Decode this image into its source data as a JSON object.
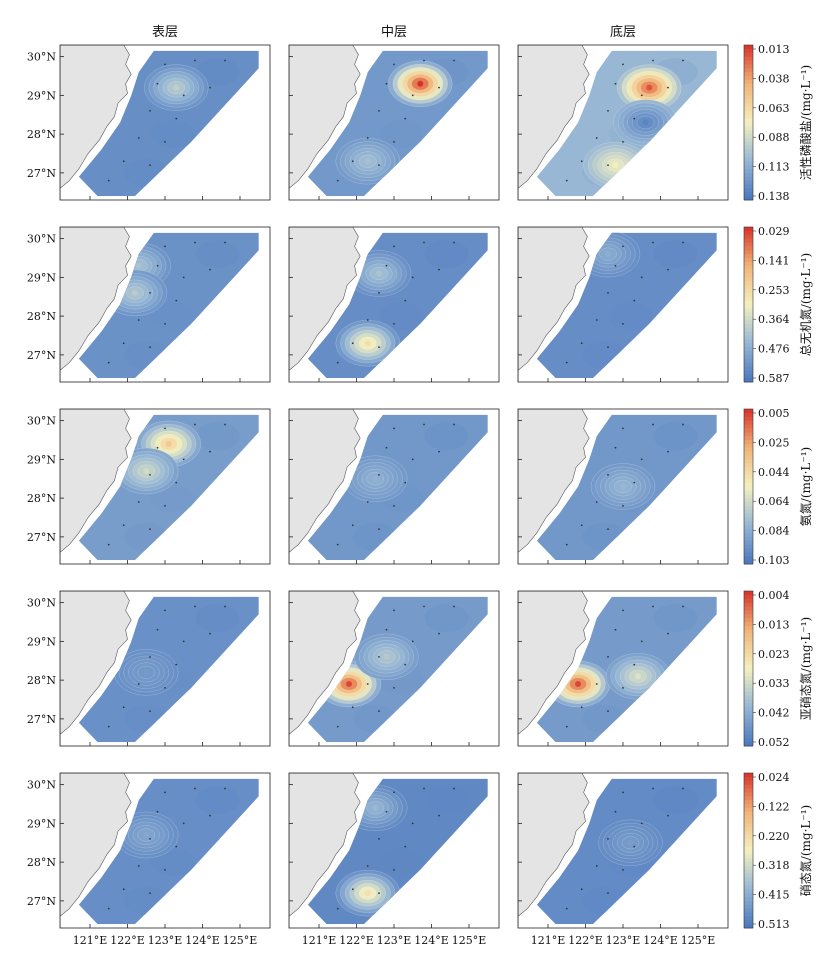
{
  "chart_data": {
    "type": "heatmap",
    "columns": [
      "表层",
      "中层",
      "底层"
    ],
    "x_ticks": [
      "121°E",
      "122°E",
      "123°E",
      "124°E",
      "125°E"
    ],
    "y_ticks": [
      "30°N",
      "29°N",
      "28°N",
      "27°N"
    ],
    "x_range": [
      120.2,
      125.8
    ],
    "y_range": [
      26.3,
      30.3
    ],
    "colors": {
      "low": "#4a76bd",
      "mid": "#f4f0c0",
      "high": "#d7312a",
      "land": "#e4e4e4"
    },
    "rows": [
      {
        "label": "活性磷酸盐/(mg·L⁻¹)",
        "colorbar_ticks": [
          "0.013",
          "0.038",
          "0.063",
          "0.088",
          "0.113",
          "0.138"
        ],
        "range": [
          0.013,
          0.138
        ],
        "panels": [
          {
            "layer": "表层",
            "base": 0.025,
            "hotspots": [
              {
                "lon": 123.3,
                "lat": 29.2,
                "value": 0.058
              }
            ]
          },
          {
            "layer": "中层",
            "base": 0.03,
            "hotspots": [
              {
                "lon": 123.7,
                "lat": 29.3,
                "value": 0.138
              },
              {
                "lon": 122.3,
                "lat": 27.3,
                "value": 0.05
              }
            ]
          },
          {
            "layer": "底层",
            "base": 0.045,
            "hotspots": [
              {
                "lon": 123.7,
                "lat": 29.2,
                "value": 0.13
              },
              {
                "lon": 122.8,
                "lat": 27.2,
                "value": 0.075
              },
              {
                "lon": 123.6,
                "lat": 28.3,
                "value": 0.02
              }
            ]
          }
        ]
      },
      {
        "label": "总无机氮/(mg·L⁻¹)",
        "colorbar_ticks": [
          "0.029",
          "0.141",
          "0.253",
          "0.364",
          "0.476",
          "0.587"
        ],
        "range": [
          0.029,
          0.587
        ],
        "panels": [
          {
            "layer": "表层",
            "base": 0.09,
            "hotspots": [
              {
                "lon": 122.3,
                "lat": 29.3,
                "value": 0.2
              },
              {
                "lon": 122.2,
                "lat": 28.6,
                "value": 0.22
              }
            ]
          },
          {
            "layer": "中层",
            "base": 0.08,
            "hotspots": [
              {
                "lon": 122.3,
                "lat": 27.3,
                "value": 0.35
              },
              {
                "lon": 122.6,
                "lat": 29.1,
                "value": 0.2
              }
            ]
          },
          {
            "layer": "底层",
            "base": 0.08,
            "hotspots": [
              {
                "lon": 122.6,
                "lat": 29.6,
                "value": 0.15
              }
            ]
          }
        ]
      },
      {
        "label": "氨氮/(mg·L⁻¹)",
        "colorbar_ticks": [
          "0.005",
          "0.025",
          "0.044",
          "0.064",
          "0.084",
          "0.103"
        ],
        "range": [
          0.005,
          0.103
        ],
        "panels": [
          {
            "layer": "表层",
            "base": 0.02,
            "hotspots": [
              {
                "lon": 123.1,
                "lat": 29.4,
                "value": 0.07
              },
              {
                "lon": 122.5,
                "lat": 28.7,
                "value": 0.045
              }
            ]
          },
          {
            "layer": "中层",
            "base": 0.018,
            "hotspots": [
              {
                "lon": 122.5,
                "lat": 28.5,
                "value": 0.028
              }
            ]
          },
          {
            "layer": "底层",
            "base": 0.018,
            "hotspots": [
              {
                "lon": 123.0,
                "lat": 28.3,
                "value": 0.03
              }
            ]
          }
        ]
      },
      {
        "label": "亚硝态氮/(mg·L⁻¹)",
        "colorbar_ticks": [
          "0.004",
          "0.013",
          "0.023",
          "0.033",
          "0.042",
          "0.052"
        ],
        "range": [
          0.004,
          0.052
        ],
        "panels": [
          {
            "layer": "表层",
            "base": 0.009,
            "hotspots": [
              {
                "lon": 122.5,
                "lat": 28.2,
                "value": 0.011
              }
            ]
          },
          {
            "layer": "中层",
            "base": 0.011,
            "hotspots": [
              {
                "lon": 121.8,
                "lat": 27.9,
                "value": 0.05
              },
              {
                "lon": 122.8,
                "lat": 28.6,
                "value": 0.02
              }
            ]
          },
          {
            "layer": "底层",
            "base": 0.011,
            "hotspots": [
              {
                "lon": 121.8,
                "lat": 27.9,
                "value": 0.05
              },
              {
                "lon": 123.4,
                "lat": 28.1,
                "value": 0.025
              }
            ]
          }
        ]
      },
      {
        "label": "硝态氮/(mg·L⁻¹)",
        "colorbar_ticks": [
          "0.024",
          "0.122",
          "0.220",
          "0.318",
          "0.415",
          "0.513"
        ],
        "range": [
          0.024,
          0.513
        ],
        "panels": [
          {
            "layer": "表层",
            "base": 0.07,
            "hotspots": [
              {
                "lon": 122.5,
                "lat": 28.7,
                "value": 0.12
              }
            ]
          },
          {
            "layer": "中层",
            "base": 0.06,
            "hotspots": [
              {
                "lon": 122.3,
                "lat": 27.2,
                "value": 0.3
              },
              {
                "lon": 122.5,
                "lat": 29.4,
                "value": 0.15
              }
            ]
          },
          {
            "layer": "底层",
            "base": 0.065,
            "hotspots": [
              {
                "lon": 123.2,
                "lat": 28.5,
                "value": 0.1
              }
            ]
          }
        ]
      }
    ]
  }
}
